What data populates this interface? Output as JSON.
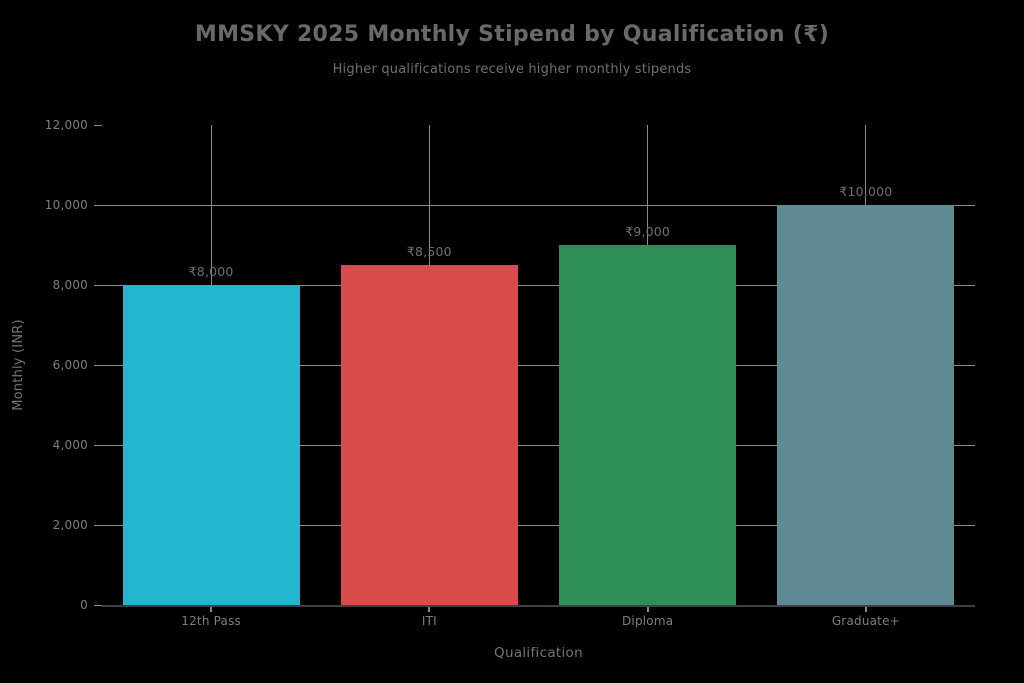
{
  "chart_data": {
    "type": "bar",
    "title": "MMSKY 2025 Monthly Stipend by Qualification (₹)",
    "subtitle": "Higher qualifications receive higher monthly stipends",
    "xlabel": "Qualification",
    "ylabel": "Monthly (INR)",
    "categories": [
      "12th Pass",
      "ITI",
      "Diploma",
      "Graduate+"
    ],
    "values": [
      8000,
      8500,
      9000,
      10000
    ],
    "value_labels": [
      "₹8,000",
      "₹8,500",
      "₹9,000",
      "₹10,000"
    ],
    "bar_colors": [
      "#23b6ce",
      "#d84a4b",
      "#2e8f58",
      "#5f8993"
    ],
    "ylim": [
      0,
      12000
    ],
    "yticks": [
      0,
      2000,
      4000,
      6000,
      8000,
      10000,
      12000
    ],
    "ytick_labels": [
      "0",
      "2,000",
      "4,000",
      "6,000",
      "8,000",
      "10,000",
      "12,000"
    ],
    "grid": true,
    "legend_position": "none",
    "colors": {
      "background": "#000000",
      "gridline": "#8a8a8e",
      "tick": "#85858a",
      "x_axis_line": "#3f3f47",
      "title_text": "#696969",
      "subtitle_text": "#707070",
      "axis_title_text": "#747474",
      "tick_label_text": "#7d7d7d",
      "value_label_text": "#6f6f6f"
    }
  }
}
